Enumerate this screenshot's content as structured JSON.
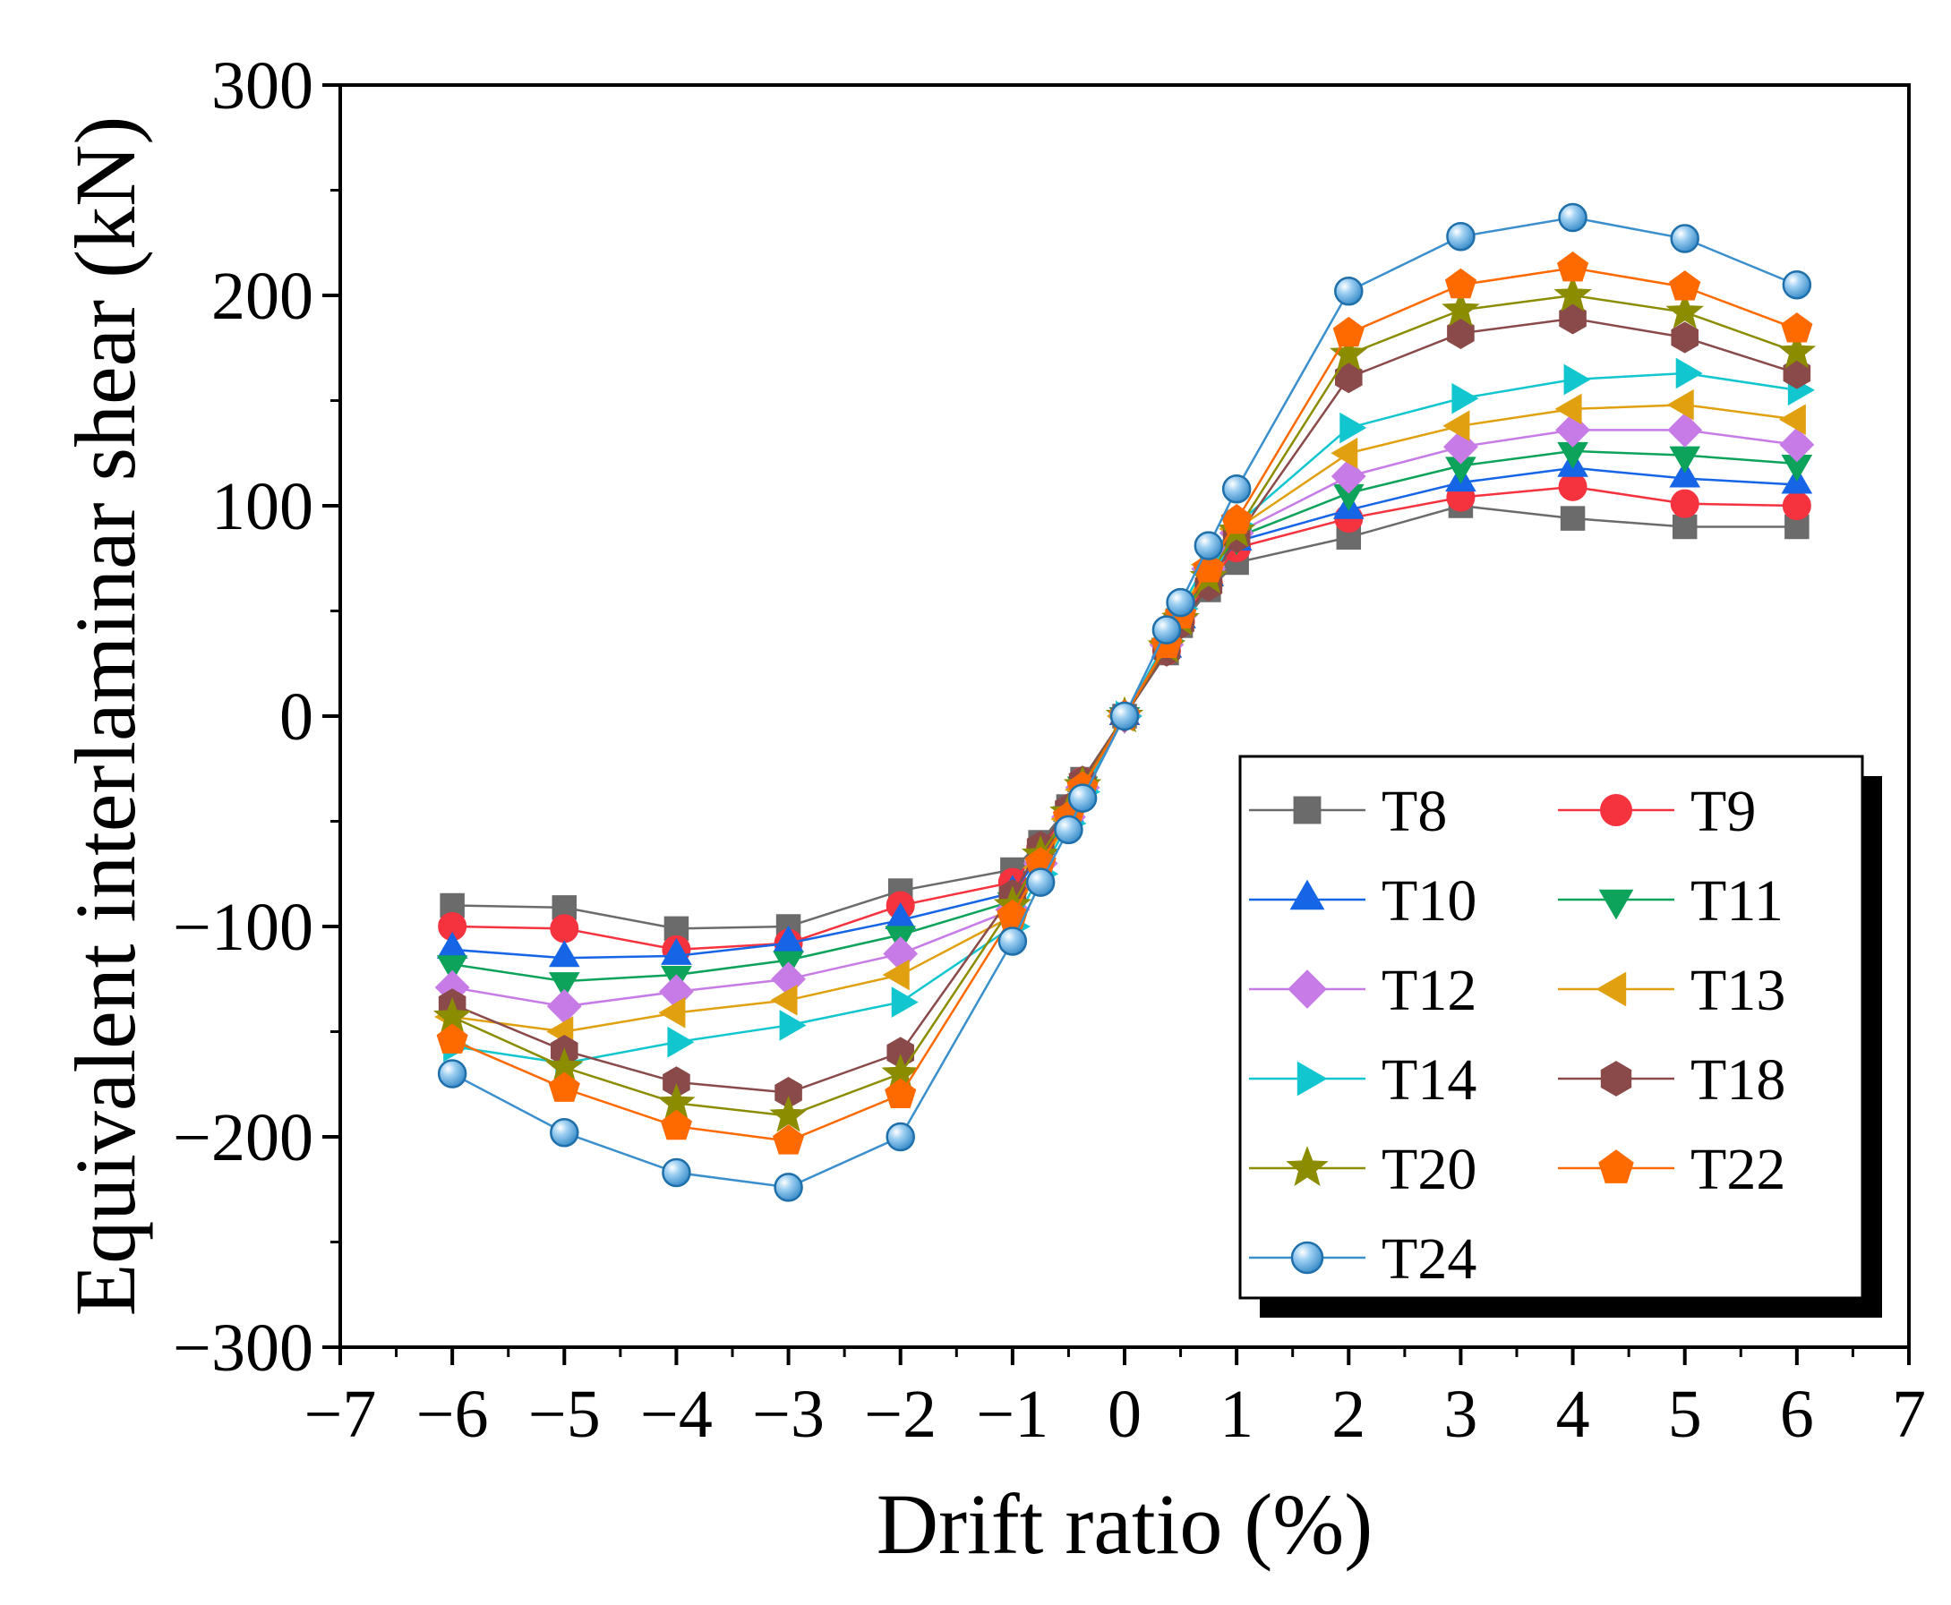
{
  "chart_data": {
    "type": "line",
    "title": "",
    "xlabel": "Drift ratio (%)",
    "ylabel": "Equivalent interlaminar shear (kN)",
    "xlim": [
      -7,
      7
    ],
    "ylim": [
      -300,
      300
    ],
    "xticks": [
      -7,
      -6,
      -5,
      -4,
      -3,
      -2,
      -1,
      0,
      1,
      2,
      3,
      4,
      5,
      6,
      7
    ],
    "yticks": [
      -300,
      -200,
      -100,
      0,
      100,
      200,
      300
    ],
    "x": [
      -6,
      -5,
      -4,
      -3,
      -2,
      -1,
      -0.75,
      -0.5,
      -0.375,
      0,
      0.375,
      0.5,
      0.75,
      1,
      2,
      3,
      4,
      5,
      6
    ],
    "legend_position": "bottom-right",
    "series": [
      {
        "name": "T8",
        "color": "#6b6b6b",
        "marker": "square",
        "values": [
          -90,
          -91,
          -101,
          -100,
          -83,
          -73,
          -60,
          -43,
          -30,
          0,
          30,
          43,
          60,
          73,
          85,
          100,
          94,
          90,
          90
        ]
      },
      {
        "name": "T9",
        "color": "#f5333f",
        "marker": "circle",
        "values": [
          -100,
          -101,
          -111,
          -108,
          -90,
          -79,
          -63,
          -45,
          -31,
          0,
          31,
          45,
          63,
          80,
          94,
          104,
          109,
          101,
          100
        ]
      },
      {
        "name": "T10",
        "color": "#1565e6",
        "marker": "triangle-up",
        "values": [
          -111,
          -115,
          -114,
          -108,
          -97,
          -84,
          -66,
          -46,
          -32,
          0,
          32,
          46,
          66,
          83,
          98,
          111,
          118,
          113,
          110
        ]
      },
      {
        "name": "T11",
        "color": "#0da35a",
        "marker": "triangle-down",
        "values": [
          -118,
          -126,
          -123,
          -116,
          -104,
          -88,
          -68,
          -47,
          -33,
          0,
          33,
          47,
          68,
          85,
          106,
          119,
          126,
          124,
          120
        ]
      },
      {
        "name": "T12",
        "color": "#c77be6",
        "marker": "diamond",
        "values": [
          -129,
          -138,
          -131,
          -125,
          -113,
          -92,
          -70,
          -48,
          -34,
          0,
          34,
          48,
          70,
          87,
          114,
          128,
          136,
          136,
          129
        ]
      },
      {
        "name": "T13",
        "color": "#e0a010",
        "marker": "triangle-left",
        "values": [
          -143,
          -150,
          -141,
          -135,
          -123,
          -95,
          -72,
          -49,
          -35,
          0,
          35,
          49,
          72,
          89,
          125,
          138,
          146,
          148,
          141
        ]
      },
      {
        "name": "T14",
        "color": "#12c6cf",
        "marker": "triangle-right",
        "values": [
          -157,
          -165,
          -155,
          -147,
          -136,
          -100,
          -75,
          -51,
          -36,
          0,
          36,
          51,
          75,
          91,
          137,
          151,
          160,
          163,
          155
        ]
      },
      {
        "name": "T18",
        "color": "#8a4a4a",
        "marker": "hexagon",
        "values": [
          -137,
          -159,
          -174,
          -179,
          -160,
          -85,
          -62,
          -44,
          -31,
          0,
          31,
          44,
          62,
          85,
          161,
          182,
          189,
          180,
          163
        ]
      },
      {
        "name": "T20",
        "color": "#8c8c00",
        "marker": "star",
        "values": [
          -143,
          -167,
          -184,
          -190,
          -170,
          -90,
          -66,
          -46,
          -33,
          0,
          33,
          46,
          66,
          88,
          172,
          193,
          200,
          192,
          173
        ]
      },
      {
        "name": "T22",
        "color": "#ff6a00",
        "marker": "pentagon",
        "values": [
          -154,
          -177,
          -195,
          -202,
          -180,
          -95,
          -70,
          -48,
          -34,
          0,
          34,
          48,
          70,
          93,
          182,
          205,
          213,
          204,
          184
        ]
      },
      {
        "name": "T24",
        "color": "#3a8fcc",
        "marker": "sphere",
        "values": [
          -170,
          -198,
          -217,
          -224,
          -200,
          -107,
          -79,
          -54,
          -39,
          0,
          41,
          54,
          81,
          108,
          202,
          228,
          237,
          227,
          205
        ]
      }
    ]
  }
}
